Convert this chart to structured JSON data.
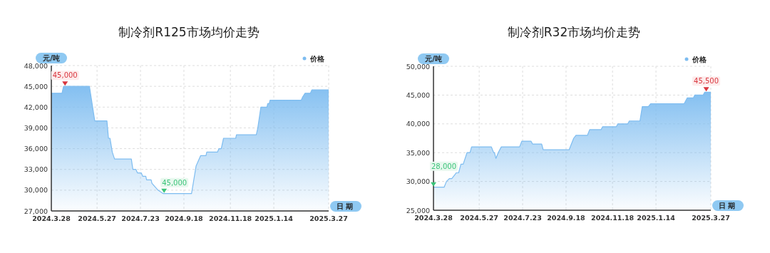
{
  "chart_data": [
    {
      "type": "area",
      "title": "制冷剂R125市场均价走势",
      "xlabel": "日期",
      "ylabel": "元/吨",
      "legend": "top right",
      "grid": true,
      "marker": "none",
      "x": [
        "2024-03-28",
        "2024-04-11",
        "2024-04-13",
        "2024-05-17",
        "2024-05-24",
        "2024-06-09",
        "2024-06-11",
        "2024-06-13",
        "2024-06-16",
        "2024-06-19",
        "2024-07-11",
        "2024-07-13",
        "2024-07-17",
        "2024-07-19",
        "2024-07-24",
        "2024-07-26",
        "2024-07-30",
        "2024-07-31",
        "2024-08-06",
        "2024-08-07",
        "2024-08-15",
        "2024-08-22",
        "2024-09-28",
        "2024-10-04",
        "2024-10-06",
        "2024-10-10",
        "2024-10-17",
        "2024-10-18",
        "2024-11-01",
        "2024-11-03",
        "2024-11-06",
        "2024-11-09",
        "2024-11-25",
        "2024-11-26",
        "2024-12-22",
        "2024-12-24",
        "2024-12-28",
        "2025-01-05",
        "2025-01-06",
        "2025-01-08",
        "2025-01-09",
        "2025-02-19",
        "2025-02-21",
        "2025-02-24",
        "2025-03-03",
        "2025-03-05",
        "2025-03-27"
      ],
      "series": [
        {
          "name": "价格",
          "color": "#7dbcf0",
          "values": [
            44000,
            44000,
            45000,
            45000,
            40000,
            40000,
            37500,
            37500,
            35500,
            34500,
            34500,
            33000,
            33000,
            32500,
            32500,
            32000,
            32000,
            31500,
            31500,
            31000,
            30000,
            29500,
            29500,
            33500,
            34000,
            35000,
            35000,
            35500,
            35500,
            36000,
            36000,
            37500,
            37500,
            38000,
            38000,
            39000,
            42000,
            42000,
            42500,
            42500,
            43000,
            43000,
            43500,
            44000,
            44000,
            44500,
            44500
          ]
        }
      ],
      "xlim": [
        "2024-03-28",
        "2025-03-27"
      ],
      "xticks": [
        {
          "value": "2024-03-28",
          "label": "2024.3.28"
        },
        {
          "value": "2024-05-27",
          "label": "2024.5.27"
        },
        {
          "value": "2024-07-23",
          "label": "2024.7.23"
        },
        {
          "value": "2024-09-18",
          "label": "2024.9.18"
        },
        {
          "value": "2024-11-18",
          "label": "2024.11.18"
        },
        {
          "value": "2025-01-14",
          "label": "2025.1.14"
        },
        {
          "value": "2025-03-27",
          "label": "2025.3.27"
        }
      ],
      "ylim": [
        27000,
        48000
      ],
      "yticks": [
        {
          "value": 27000,
          "label": "27,000"
        },
        {
          "value": 30000,
          "label": "30,000"
        },
        {
          "value": 33000,
          "label": "33,000"
        },
        {
          "value": 36000,
          "label": "36,000"
        },
        {
          "value": 39000,
          "label": "39,000"
        },
        {
          "value": 42000,
          "label": "42,000"
        },
        {
          "value": 45000,
          "label": "45,000"
        },
        {
          "value": 48000,
          "label": "48,000"
        }
      ],
      "annotations": [
        {
          "text": "45,000",
          "x": "2024-04-15",
          "y": 45000
        },
        {
          "text": "45,000",
          "x": "2024-08-23",
          "y": 29500
        }
      ]
    },
    {
      "type": "area",
      "title": "制冷剂R32市场均价走势",
      "xlabel": "日期",
      "ylabel": "元/吨",
      "legend": "top right",
      "grid": true,
      "marker": "none",
      "x": [
        "2024-03-28",
        "2024-04-11",
        "2024-04-14",
        "2024-04-18",
        "2024-04-21",
        "2024-04-24",
        "2024-04-27",
        "2024-04-30",
        "2024-05-03",
        "2024-05-06",
        "2024-05-11",
        "2024-05-15",
        "2024-05-17",
        "2024-06-12",
        "2024-06-15",
        "2024-06-16",
        "2024-06-18",
        "2024-06-21",
        "2024-06-25",
        "2024-07-19",
        "2024-07-22",
        "2024-08-03",
        "2024-08-05",
        "2024-08-17",
        "2024-08-19",
        "2024-09-22",
        "2024-09-28",
        "2024-10-01",
        "2024-10-16",
        "2024-10-19",
        "2024-11-03",
        "2024-11-05",
        "2024-11-23",
        "2024-11-25",
        "2024-12-08",
        "2024-12-10",
        "2024-12-24",
        "2024-12-27",
        "2025-01-04",
        "2025-01-07",
        "2025-02-20",
        "2025-02-24",
        "2025-03-04",
        "2025-03-06",
        "2025-03-17",
        "2025-03-19",
        "2025-03-27"
      ],
      "series": [
        {
          "name": "价格",
          "color": "#7dbcf0",
          "values": [
            29000,
            29000,
            30000,
            30500,
            30500,
            31000,
            31500,
            31500,
            33000,
            33000,
            35000,
            35000,
            36000,
            36000,
            35000,
            35000,
            34000,
            35000,
            36000,
            36000,
            37000,
            37000,
            36500,
            36500,
            35500,
            35500,
            37500,
            38000,
            38000,
            39000,
            39000,
            39500,
            39500,
            40000,
            40000,
            40500,
            40500,
            43000,
            43000,
            43500,
            43500,
            44500,
            44500,
            45000,
            45000,
            45500,
            45500
          ]
        }
      ],
      "xlim": [
        "2024-03-28",
        "2025-03-27"
      ],
      "xticks": [
        {
          "value": "2024-03-28",
          "label": "2024.3.28"
        },
        {
          "value": "2024-05-27",
          "label": "2024.5.27"
        },
        {
          "value": "2024-07-23",
          "label": "2024.7.23"
        },
        {
          "value": "2024-09-18",
          "label": "2024.9.18"
        },
        {
          "value": "2024-11-18",
          "label": "2024.11.18"
        },
        {
          "value": "2025-01-14",
          "label": "2025.1.14"
        },
        {
          "value": "2025-03-27",
          "label": "2025.3.27"
        }
      ],
      "ylim": [
        25000,
        50000
      ],
      "yticks": [
        {
          "value": 25000,
          "label": "25,000"
        },
        {
          "value": 30000,
          "label": "30,000"
        },
        {
          "value": 35000,
          "label": "35,000"
        },
        {
          "value": 40000,
          "label": "40,000"
        },
        {
          "value": 45000,
          "label": "45,000"
        },
        {
          "value": 50000,
          "label": "50,000"
        }
      ],
      "annotations": [
        {
          "text": "28,000",
          "x": "2024-03-28",
          "y": 29000
        },
        {
          "text": "45,500",
          "x": "2025-03-21",
          "y": 45500
        }
      ]
    }
  ]
}
